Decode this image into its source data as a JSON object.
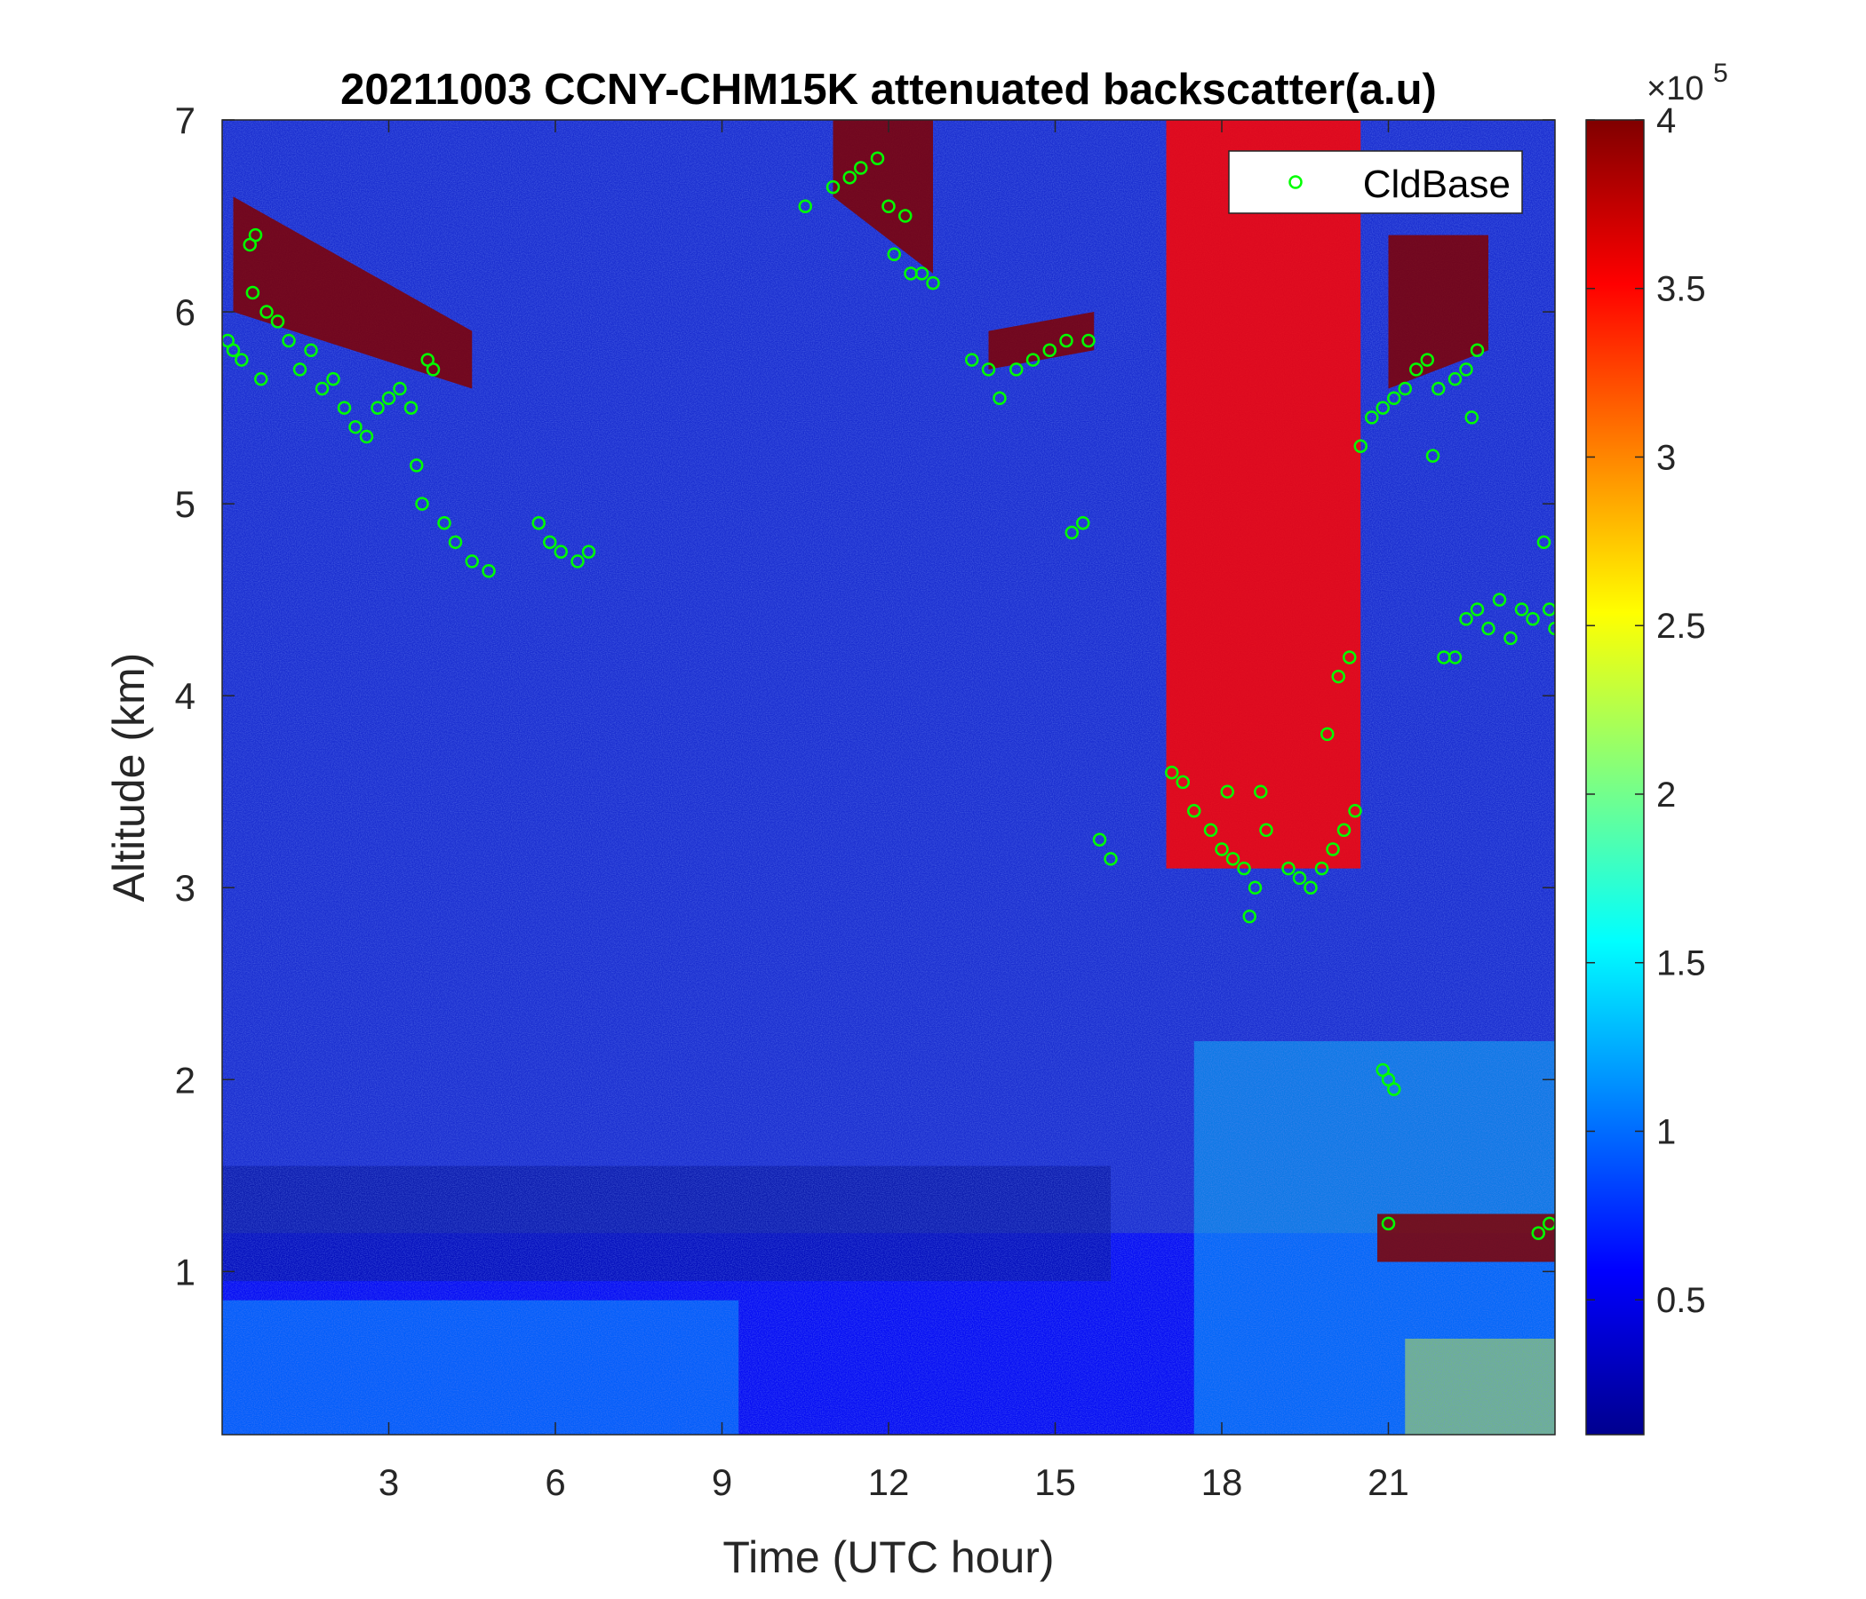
{
  "chart_data": {
    "type": "heatmap",
    "title": "20211003 CCNY-CHM15K attenuated backscatter(a.u)",
    "xlabel": "Time (UTC hour)",
    "ylabel": "Altitude (km)",
    "xlim": [
      0,
      24
    ],
    "ylim": [
      0.15,
      7
    ],
    "xticks": [
      3,
      6,
      9,
      12,
      15,
      18,
      21
    ],
    "yticks": [
      1,
      2,
      3,
      4,
      5,
      6,
      7
    ],
    "colorbar": {
      "colormap": "jet",
      "clim": [
        0.1,
        4
      ],
      "ticks": [
        0.5,
        1,
        1.5,
        2,
        2.5,
        3,
        3.5,
        4
      ],
      "multiplier_label": "×10",
      "multiplier_exponent": "5"
    },
    "legend": {
      "position": "top-right",
      "entries": [
        {
          "name": "CldBase",
          "marker": "open-circle",
          "color": "#00ff00"
        }
      ]
    },
    "background_field": [
      {
        "description_free": true,
        "x_range": [
          0,
          24
        ],
        "y_range": [
          0.15,
          1.2
        ],
        "level": 0.6
      }
    ],
    "cloud_layers": [
      {
        "x_range": [
          0.2,
          4.5
        ],
        "base_km": [
          6.0,
          5.6
        ],
        "top_km": [
          6.6,
          5.9
        ],
        "value": 4.0
      },
      {
        "x_range": [
          11.0,
          12.8
        ],
        "base_km": [
          6.6,
          6.2
        ],
        "top_km": [
          7.0,
          7.0
        ],
        "value": 4.0
      },
      {
        "x_range": [
          13.8,
          15.7
        ],
        "base_km": [
          5.7,
          5.8
        ],
        "top_km": [
          5.9,
          6.0
        ],
        "value": 4.0
      },
      {
        "x_range": [
          17.0,
          20.5
        ],
        "base_km": [
          3.1,
          3.1
        ],
        "top_km": [
          7.0,
          7.0
        ],
        "value": 3.5
      },
      {
        "x_range": [
          21.0,
          22.8
        ],
        "base_km": [
          5.6,
          5.8
        ],
        "top_km": [
          6.4,
          6.4
        ],
        "value": 4.0
      },
      {
        "x_range": [
          20.8,
          24.0
        ],
        "base_km": [
          1.05,
          1.05
        ],
        "top_km": [
          1.3,
          1.3
        ],
        "value": 4.0
      }
    ],
    "series": [
      {
        "name": "CldBase",
        "points": [
          [
            0.1,
            5.85
          ],
          [
            0.2,
            5.8
          ],
          [
            0.35,
            5.75
          ],
          [
            0.5,
            6.35
          ],
          [
            0.55,
            6.1
          ],
          [
            0.6,
            6.4
          ],
          [
            0.7,
            5.65
          ],
          [
            0.8,
            6.0
          ],
          [
            1.0,
            5.95
          ],
          [
            1.2,
            5.85
          ],
          [
            1.4,
            5.7
          ],
          [
            1.6,
            5.8
          ],
          [
            1.8,
            5.6
          ],
          [
            2.0,
            5.65
          ],
          [
            2.2,
            5.5
          ],
          [
            2.4,
            5.4
          ],
          [
            2.6,
            5.35
          ],
          [
            2.8,
            5.5
          ],
          [
            3.0,
            5.55
          ],
          [
            3.2,
            5.6
          ],
          [
            3.4,
            5.5
          ],
          [
            3.5,
            5.2
          ],
          [
            3.6,
            5.0
          ],
          [
            3.7,
            5.75
          ],
          [
            3.8,
            5.7
          ],
          [
            4.0,
            4.9
          ],
          [
            4.2,
            4.8
          ],
          [
            4.5,
            4.7
          ],
          [
            4.8,
            4.65
          ],
          [
            5.7,
            4.9
          ],
          [
            5.9,
            4.8
          ],
          [
            6.1,
            4.75
          ],
          [
            6.4,
            4.7
          ],
          [
            6.6,
            4.75
          ],
          [
            10.5,
            6.55
          ],
          [
            11.0,
            6.65
          ],
          [
            11.3,
            6.7
          ],
          [
            11.5,
            6.75
          ],
          [
            11.8,
            6.8
          ],
          [
            12.0,
            6.55
          ],
          [
            12.1,
            6.3
          ],
          [
            12.3,
            6.5
          ],
          [
            12.4,
            6.2
          ],
          [
            12.6,
            6.2
          ],
          [
            12.8,
            6.15
          ],
          [
            13.5,
            5.75
          ],
          [
            13.8,
            5.7
          ],
          [
            14.0,
            5.55
          ],
          [
            14.3,
            5.7
          ],
          [
            14.6,
            5.75
          ],
          [
            14.9,
            5.8
          ],
          [
            15.2,
            5.85
          ],
          [
            15.6,
            5.85
          ],
          [
            15.3,
            4.85
          ],
          [
            15.5,
            4.9
          ],
          [
            15.8,
            3.25
          ],
          [
            16.0,
            3.15
          ],
          [
            17.1,
            3.6
          ],
          [
            17.3,
            3.55
          ],
          [
            17.5,
            3.4
          ],
          [
            17.8,
            3.3
          ],
          [
            18.0,
            3.2
          ],
          [
            18.2,
            3.15
          ],
          [
            18.4,
            3.1
          ],
          [
            18.6,
            3.0
          ],
          [
            18.8,
            3.3
          ],
          [
            18.5,
            2.85
          ],
          [
            18.1,
            3.5
          ],
          [
            18.7,
            3.5
          ],
          [
            19.2,
            3.1
          ],
          [
            19.4,
            3.05
          ],
          [
            19.6,
            3.0
          ],
          [
            19.8,
            3.1
          ],
          [
            20.0,
            3.2
          ],
          [
            20.2,
            3.3
          ],
          [
            20.4,
            3.4
          ],
          [
            19.9,
            3.8
          ],
          [
            20.1,
            4.1
          ],
          [
            20.3,
            4.2
          ],
          [
            20.5,
            5.3
          ],
          [
            20.7,
            5.45
          ],
          [
            20.9,
            5.5
          ],
          [
            21.1,
            5.55
          ],
          [
            21.3,
            5.6
          ],
          [
            21.5,
            5.7
          ],
          [
            21.7,
            5.75
          ],
          [
            21.9,
            5.6
          ],
          [
            22.2,
            5.65
          ],
          [
            22.4,
            5.7
          ],
          [
            22.6,
            5.8
          ],
          [
            22.5,
            5.45
          ],
          [
            21.8,
            5.25
          ],
          [
            20.9,
            2.05
          ],
          [
            21.0,
            2.0
          ],
          [
            21.1,
            1.95
          ],
          [
            21.0,
            1.25
          ],
          [
            23.7,
            1.2
          ],
          [
            23.9,
            1.25
          ],
          [
            22.0,
            4.2
          ],
          [
            22.2,
            4.2
          ],
          [
            22.4,
            4.4
          ],
          [
            22.6,
            4.45
          ],
          [
            22.8,
            4.35
          ],
          [
            23.0,
            4.5
          ],
          [
            23.2,
            4.3
          ],
          [
            23.4,
            4.45
          ],
          [
            23.6,
            4.4
          ],
          [
            23.8,
            4.8
          ],
          [
            23.9,
            4.45
          ],
          [
            24.0,
            4.35
          ]
        ]
      }
    ]
  }
}
